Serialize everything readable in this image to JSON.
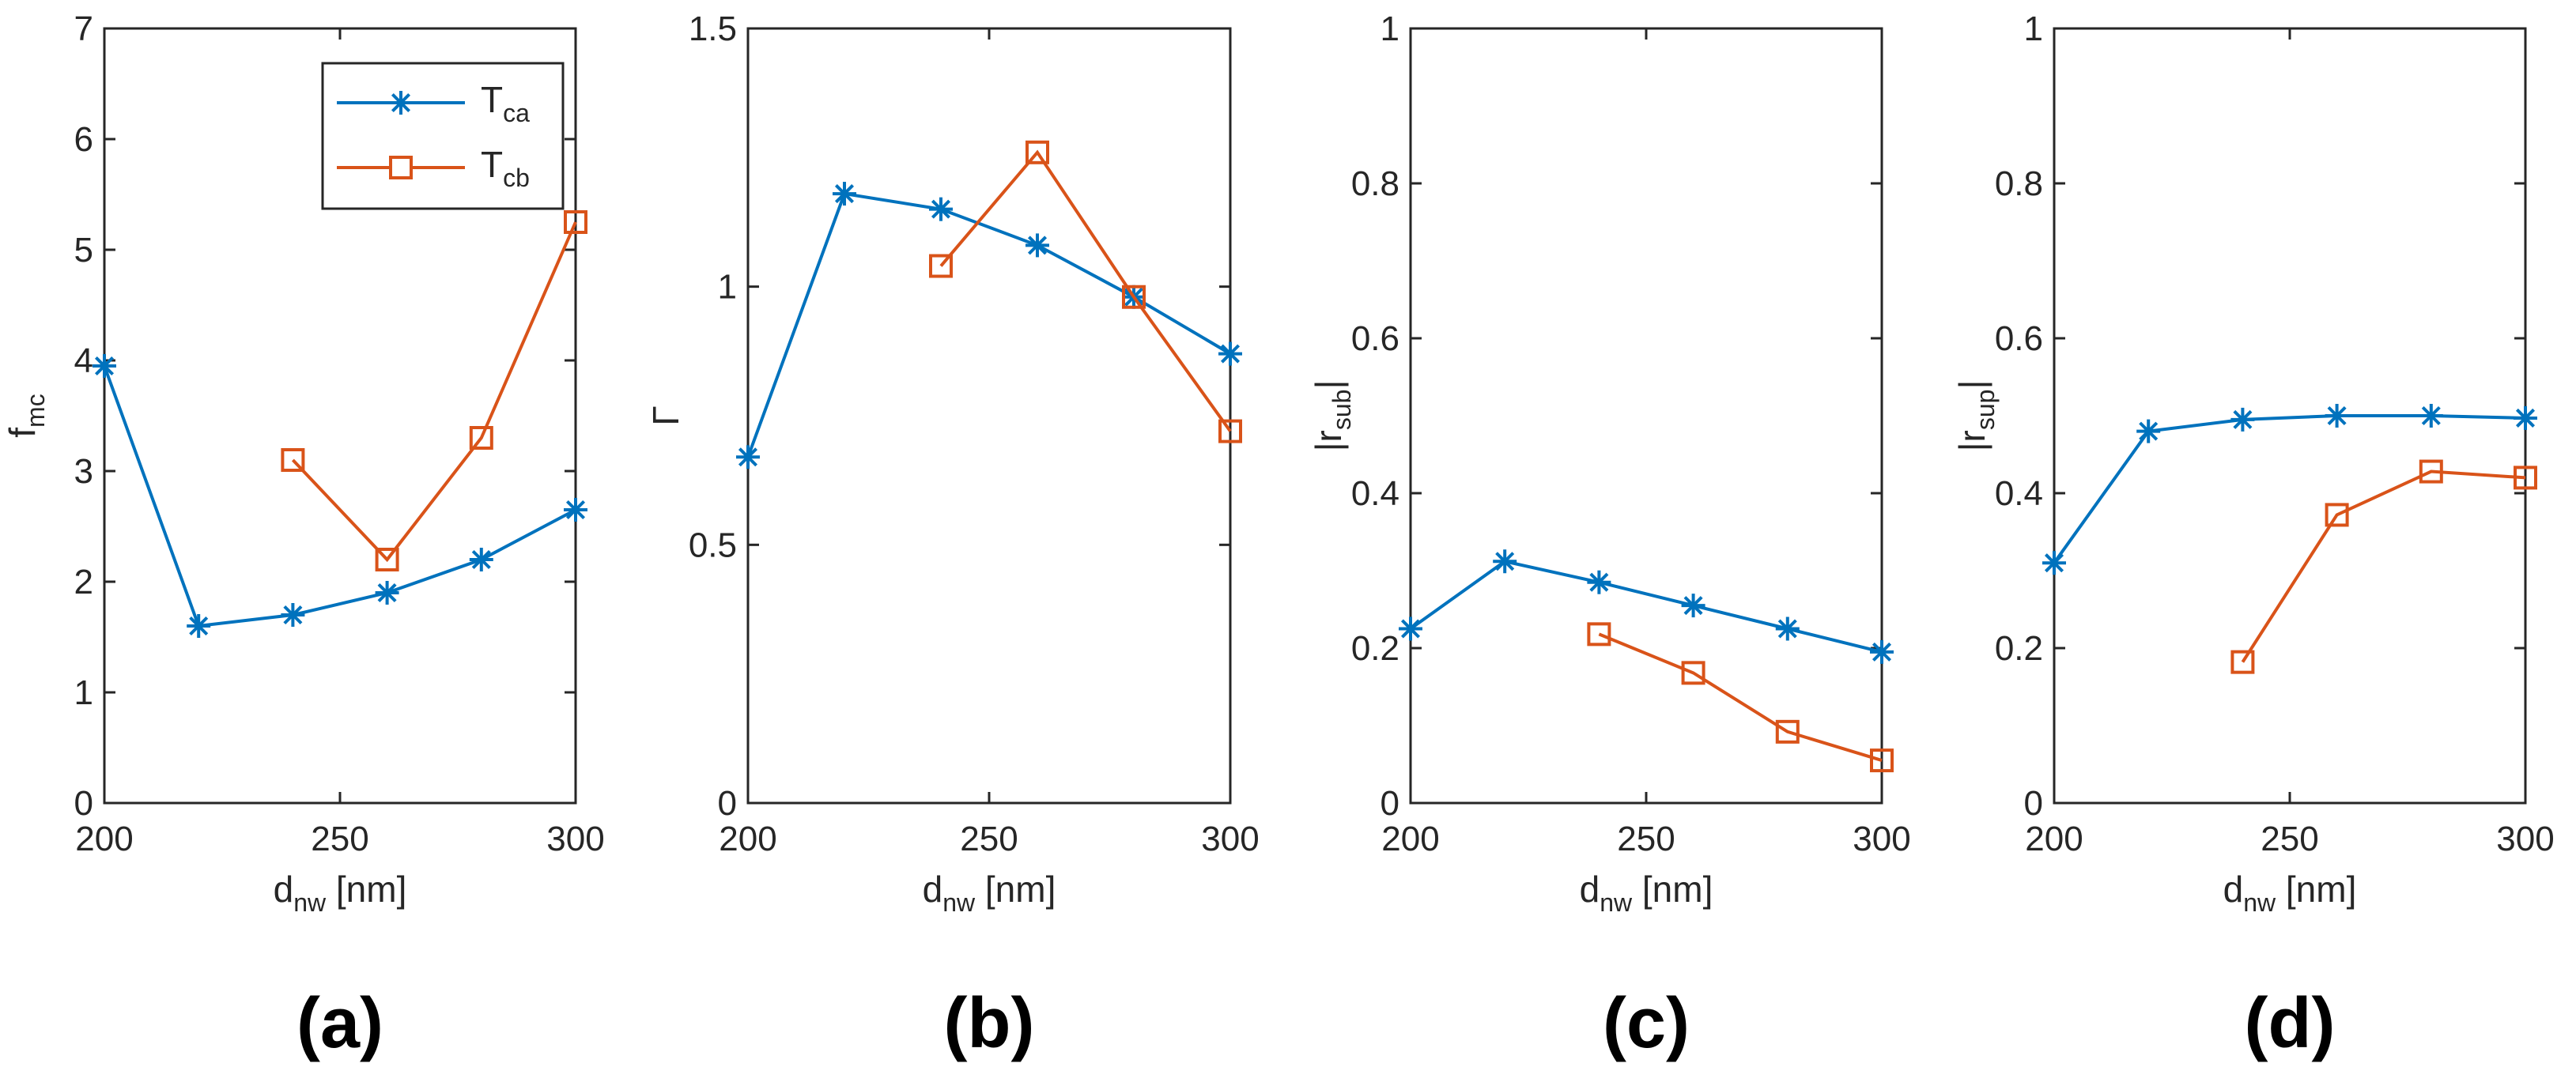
{
  "chart_data": [
    {
      "type": "line",
      "panel_label": "(a)",
      "x": [
        200,
        220,
        240,
        260,
        280,
        300
      ],
      "xlim": [
        200,
        300
      ],
      "xticks": [
        200,
        250,
        300
      ],
      "xlabel": {
        "main": "d",
        "sub": "nw",
        "unit": " [nm]"
      },
      "ylabel": {
        "main": "f",
        "sub": "mc",
        "suffix": ""
      },
      "ylim": [
        0,
        7
      ],
      "yticks": [
        0,
        1,
        2,
        3,
        4,
        5,
        6,
        7
      ],
      "legend": {
        "placement": "top-right",
        "entries": [
          {
            "main": "T",
            "sub": "ca"
          },
          {
            "main": "T",
            "sub": "cb"
          }
        ]
      },
      "series": [
        {
          "name": "Tca",
          "color": "#0072BD",
          "marker": "asterisk",
          "values": [
            3.95,
            1.6,
            1.7,
            1.9,
            2.2,
            2.65
          ]
        },
        {
          "name": "Tcb",
          "color": "#D95319",
          "marker": "square",
          "values": [
            null,
            null,
            3.1,
            2.2,
            3.3,
            5.25
          ]
        }
      ]
    },
    {
      "type": "line",
      "panel_label": "(b)",
      "x": [
        200,
        220,
        240,
        260,
        280,
        300
      ],
      "xlim": [
        200,
        300
      ],
      "xticks": [
        200,
        250,
        300
      ],
      "xlabel": {
        "main": "d",
        "sub": "nw",
        "unit": " [nm]"
      },
      "ylabel": {
        "main": "Γ",
        "sub": "",
        "suffix": ""
      },
      "ylim": [
        0,
        1.5
      ],
      "yticks": [
        0,
        0.5,
        1,
        1.5
      ],
      "series": [
        {
          "name": "Tca",
          "color": "#0072BD",
          "marker": "asterisk",
          "values": [
            0.67,
            1.18,
            1.15,
            1.08,
            0.98,
            0.87
          ]
        },
        {
          "name": "Tcb",
          "color": "#D95319",
          "marker": "square",
          "values": [
            null,
            null,
            1.04,
            1.26,
            0.98,
            0.72
          ]
        }
      ]
    },
    {
      "type": "line",
      "panel_label": "(c)",
      "x": [
        200,
        220,
        240,
        260,
        280,
        300
      ],
      "xlim": [
        200,
        300
      ],
      "xticks": [
        200,
        250,
        300
      ],
      "xlabel": {
        "main": "d",
        "sub": "nw",
        "unit": " [nm]"
      },
      "ylabel": {
        "main": "|r",
        "sub": "sub",
        "suffix": "|"
      },
      "ylim": [
        0,
        1
      ],
      "yticks": [
        0,
        0.2,
        0.4,
        0.6,
        0.8,
        1
      ],
      "series": [
        {
          "name": "Tca",
          "color": "#0072BD",
          "marker": "asterisk",
          "values": [
            0.225,
            0.312,
            0.285,
            0.255,
            0.225,
            0.195
          ]
        },
        {
          "name": "Tcb",
          "color": "#D95319",
          "marker": "square",
          "values": [
            null,
            null,
            0.218,
            0.168,
            0.092,
            0.055
          ]
        }
      ]
    },
    {
      "type": "line",
      "panel_label": "(d)",
      "x": [
        200,
        220,
        240,
        260,
        280,
        300
      ],
      "xlim": [
        200,
        300
      ],
      "xticks": [
        200,
        250,
        300
      ],
      "xlabel": {
        "main": "d",
        "sub": "nw",
        "unit": " [nm]"
      },
      "ylabel": {
        "main": "|r",
        "sub": "sup",
        "suffix": "|"
      },
      "ylim": [
        0,
        1
      ],
      "yticks": [
        0,
        0.2,
        0.4,
        0.6,
        0.8,
        1
      ],
      "series": [
        {
          "name": "Tca",
          "color": "#0072BD",
          "marker": "asterisk",
          "values": [
            0.31,
            0.48,
            0.495,
            0.5,
            0.5,
            0.497
          ]
        },
        {
          "name": "Tcb",
          "color": "#D95319",
          "marker": "square",
          "values": [
            null,
            null,
            0.182,
            0.372,
            0.428,
            0.42
          ]
        }
      ]
    }
  ]
}
